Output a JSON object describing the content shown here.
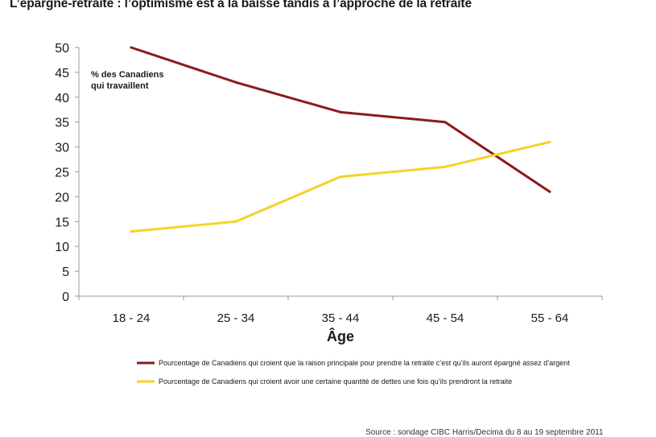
{
  "title": "L’épargne-retraite : l’optimisme est à la baisse tandis à l’approche de la retraite",
  "source": "Source : sondage CIBC Harris/Decima du 8 au 19 septembre 2011",
  "colors": {
    "series1": "#8b1a1a",
    "series2": "#f5d327",
    "axis": "#999999"
  },
  "chart_data": {
    "type": "line",
    "title": "L’épargne-retraite : l’optimisme est à la baisse tandis à l’approche de la retraite",
    "categories": [
      "18 - 24",
      "25 - 34",
      "35 - 44",
      "45 - 54",
      "55 - 64"
    ],
    "xlabel": "Âge",
    "ylabel": "% des Canadiens qui travaillent",
    "ylabel_lines": [
      "% des Canadiens",
      "qui travaillent"
    ],
    "ylim": [
      0,
      50
    ],
    "yticks": [
      0,
      5,
      10,
      15,
      20,
      25,
      30,
      35,
      40,
      45,
      50
    ],
    "grid": false,
    "legend_position": "bottom",
    "series": [
      {
        "name": "Pourcentage de Canadiens qui croient que la raison principale pour prendre la retraite c’est qu’ils auront épargné assez d’argent",
        "values": [
          50,
          43,
          37,
          35,
          21
        ],
        "color": "#8b1a1a"
      },
      {
        "name": "Pourcentage de Canadiens qui croient avoir une certaine quantité de dettes une fois qu’ils prendront la retraite",
        "values": [
          13,
          15,
          24,
          26,
          31
        ],
        "color": "#f5d327"
      }
    ]
  }
}
